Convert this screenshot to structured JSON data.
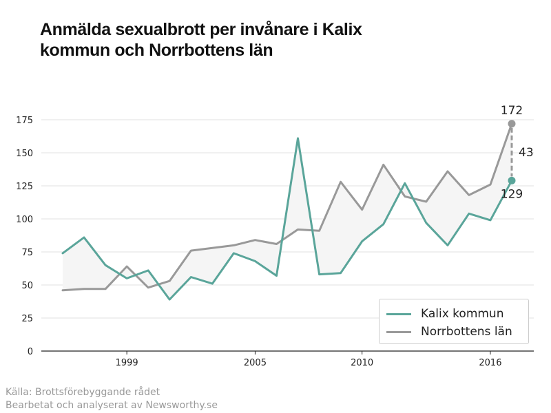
{
  "title": {
    "line1": "Anmälda sexualbrott per invånare i Kalix",
    "line2": "kommun och Norrbottens län"
  },
  "source": {
    "line1": "Källa: Brottsförebyggande rådet",
    "line2": "Bearbetat och analyserat av Newsworthy.se"
  },
  "colors": {
    "kalix": "#5aa59a",
    "norrbotten": "#999999",
    "gap_fill": "#f5f5f5"
  },
  "chart_data": {
    "type": "line",
    "title": "Anmälda sexualbrott per invånare i Kalix kommun och Norrbottens län",
    "x": [
      1996,
      1997,
      1998,
      1999,
      2000,
      2001,
      2002,
      2003,
      2004,
      2005,
      2006,
      2007,
      2008,
      2009,
      2010,
      2011,
      2012,
      2013,
      2014,
      2015,
      2016,
      2017
    ],
    "xticks": [
      1999,
      2005,
      2010,
      2016
    ],
    "yticks": [
      0,
      25,
      50,
      75,
      100,
      125,
      150,
      175
    ],
    "ylim": [
      0,
      175
    ],
    "grid": true,
    "legend_position": "bottom-right",
    "series": [
      {
        "name": "Kalix kommun",
        "color": "#5aa59a",
        "values": [
          74,
          86,
          65,
          55,
          61,
          39,
          56,
          51,
          74,
          68,
          57,
          161,
          58,
          59,
          83,
          96,
          127,
          97,
          80,
          104,
          99,
          129
        ]
      },
      {
        "name": "Norrbottens län",
        "color": "#999999",
        "values": [
          46,
          47,
          47,
          64,
          48,
          53,
          76,
          78,
          80,
          84,
          81,
          92,
          91,
          128,
          107,
          141,
          117,
          113,
          136,
          118,
          126,
          172
        ]
      }
    ],
    "annotations": {
      "last_norrbotten": "172",
      "last_kalix": "129",
      "difference": "43"
    }
  }
}
